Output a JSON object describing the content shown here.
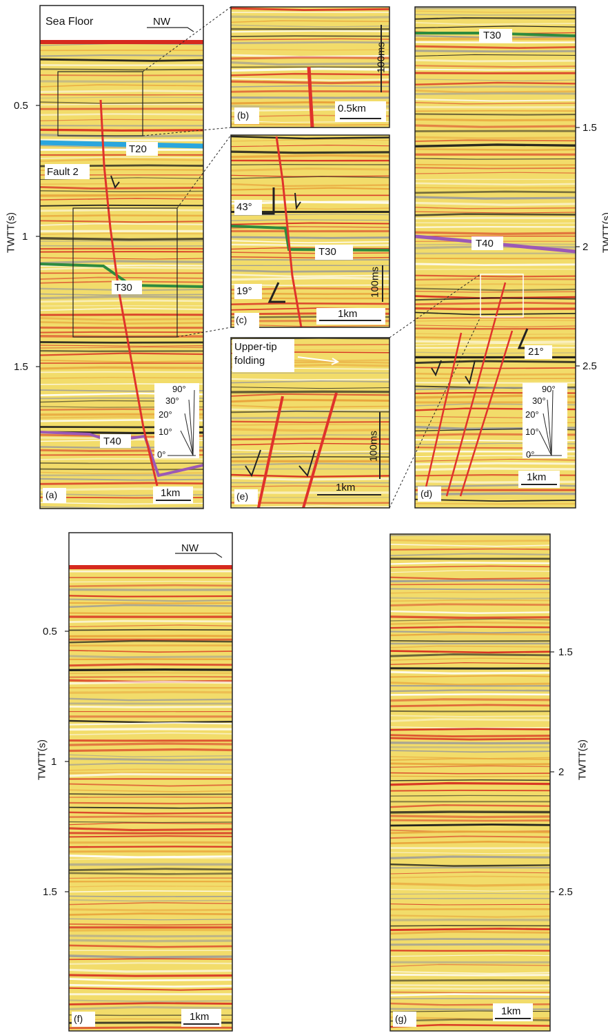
{
  "colors": {
    "background": "#f2dc6a",
    "horizon_red": "#d62a1e",
    "horizon_black": "#1a1a1a",
    "horizon_grey": "#9a9a9a",
    "fault": "#e0322b",
    "T20": "#2aa6de",
    "T30": "#2e8b3e",
    "T40": "#9b59b6"
  },
  "axis_title": "TWTT(s)",
  "panel_a": {
    "label": "(a)",
    "sea_floor": "Sea Floor",
    "direction": "NW",
    "ticks": [
      "0.5",
      "1",
      "1.5"
    ],
    "fault_label": "Fault 2",
    "horizons": [
      "T20",
      "T30",
      "T40"
    ],
    "scale": "1km",
    "dip_legend": [
      "90°",
      "30°",
      "20°",
      "10°",
      "0°"
    ]
  },
  "panel_b": {
    "label": "(b)",
    "scale_v": "100ms",
    "scale_h": "0.5km"
  },
  "panel_c": {
    "label": "(c)",
    "angle_top": "43°",
    "angle_bottom": "19°",
    "horizon": "T30",
    "scale_v": "100ms",
    "scale_h": "1km"
  },
  "panel_d": {
    "label": "(d)",
    "ticks": [
      "1.5",
      "2",
      "2.5"
    ],
    "horizons": [
      "T30",
      "T40"
    ],
    "angle": "21°",
    "scale": "1km",
    "dip_legend": [
      "90°",
      "30°",
      "20°",
      "10°",
      "0°"
    ]
  },
  "panel_e": {
    "label": "(e)",
    "annotation_line1": "Upper-tip",
    "annotation_line2": "folding",
    "scale_v": "100ms",
    "scale_h": "1km"
  },
  "panel_f": {
    "label": "(f)",
    "direction": "NW",
    "ticks": [
      "0.5",
      "1",
      "1.5"
    ],
    "scale": "1km"
  },
  "panel_g": {
    "label": "(g)",
    "ticks": [
      "1.5",
      "2",
      "2.5"
    ],
    "scale": "1km"
  }
}
